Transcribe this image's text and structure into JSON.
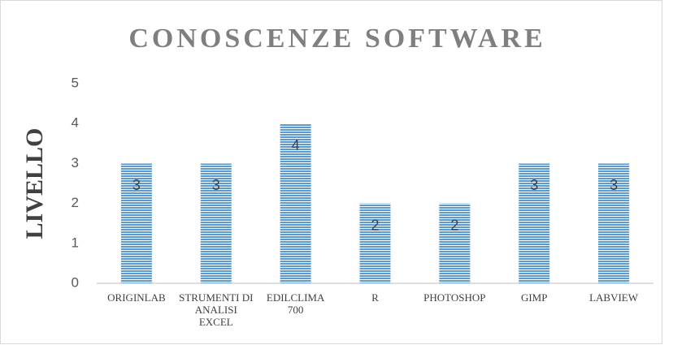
{
  "chart_data": {
    "type": "bar",
    "title": "CONOSCENZE SOFTWARE",
    "y_label": "LIVELLO",
    "categories": [
      "ORIGINLAB",
      "STRUMENTI DI ANALISI EXCEL",
      "EDILCLIMA 700",
      "R",
      "PHOTOSHOP",
      "GIMP",
      "LABVIEW"
    ],
    "values": [
      3,
      3,
      4,
      2,
      2,
      3,
      3
    ],
    "color": "#5b9bd5",
    "ylim": [
      0,
      5
    ],
    "yticks": [
      0,
      1,
      2,
      3,
      4,
      5
    ],
    "grid": false,
    "data_labels": true
  }
}
